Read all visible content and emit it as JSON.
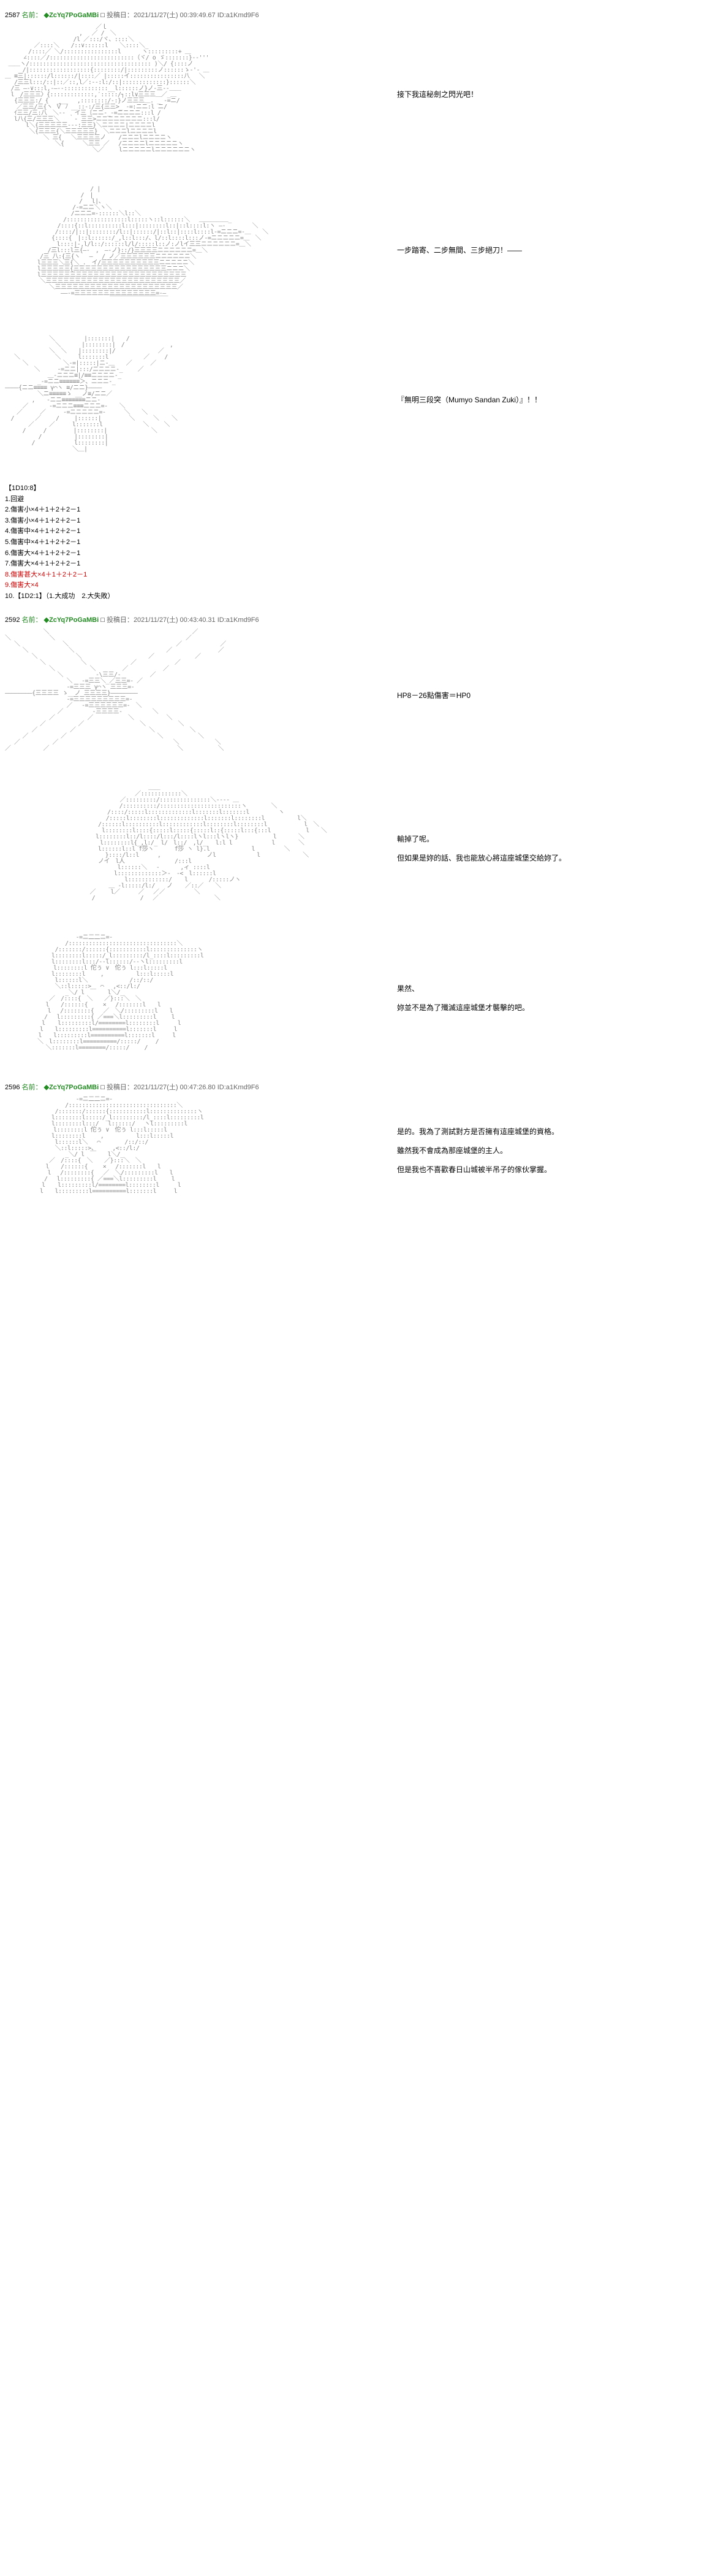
{
  "posts": [
    {
      "number": "2587",
      "name_label": "名前：",
      "trip": "◆ZcYq7PoGaMBi",
      "mark": "□",
      "date_label": "投稿日：",
      "timestamp": "2021/11/27(土) 00:39:49.67",
      "id": "ID:a1Kmd9F6"
    },
    {
      "number": "2592",
      "name_label": "名前：",
      "trip": "◆ZcYq7PoGaMBi",
      "mark": "□",
      "date_label": "投稿日：",
      "timestamp": "2021/11/27(土) 00:43:40.31",
      "id": "ID:a1Kmd9F6"
    },
    {
      "number": "2596",
      "name_label": "名前：",
      "trip": "◆ZcYq7PoGaMBi",
      "mark": "□",
      "date_label": "投稿日：",
      "timestamp": "2021/11/27(土) 00:47:26.80",
      "id": "ID:a1Kmd9F6"
    }
  ],
  "dialogue": {
    "p1": "接下我這秘劍之閃光吧！",
    "p2": "一步踏寄、二步無間、三步絕刀！——",
    "p3": "『無明三段突（Mumyo Sandan Zuki）』！！",
    "p4": "HP8－26點傷害＝HP0",
    "p5a": "輸掉了呢。",
    "p5b": "但如果是妳的話、我也能放心將這座城堡交給妳了。",
    "p6a": "果然、",
    "p6b": "妳並不是為了殲滅這座城堡才襲擊的吧。",
    "p7a": "是的。我為了測試對方是否擁有這座城堡的資格。",
    "p7b": "雖然我不會成為那座城堡的主人。",
    "p7c": "但是我也不喜歡春日山城被半吊子的傢伙掌握。"
  },
  "dice": {
    "header": "【1D10:8】",
    "lines": [
      "1.回避",
      "2.傷害小×4＋1＋2＋2－1",
      "3.傷害小×4＋1＋2＋2－1",
      "4.傷害中×4＋1＋2＋2－1",
      "5.傷害中×4＋1＋2＋2－1",
      "6.傷害大×4＋1＋2＋2－1",
      "7.傷害大×4＋1＋2＋2－1"
    ],
    "line8": "8.傷害甚大×4＋1＋2＋2－1",
    "line9": "9.傷害大×4",
    "line10": "10.【1D2:1】（1.大成功　2.大失敗）"
  },
  "art": {
    "fig1": "　　　　　　　　　　　　　　　 ／ｌ\n　　　　　　　　　 　 　 ,　 ／ /　＼\n　　　　　　　　 　 　 /l ／:::/ヾ、::::＼\n　　　　　／::::＼　　/::∨::::::l　　＼::::＼_\n　　　　/::::／ ＼/::::::::::::::::l　　　 ヽ:::::::::+ ＿\n　 　 ∠::::／/:::::::::::::::::::::::::（ヾ/ o ゞ:::::::}-‐'''\n ＿＿ヽ/:::::::::::::::::::::::::::::::::::: )＼/ {::::ノ\n　　　/|::::::::::::::::::{::::::::/|:::::::::ノ::::::ゝ-'- ＿\n＿ ≡三|::::::/l::::::/|::::／ |:::::イ::::::::::::::::八　 ＼\n　 /三三l:::/::|::／::,l／:-‐:l:/::|:::::::::::::}::::::＼\n　/三 ―-∨:::l,-―--:::::::::::::__l::::::ノ}ノ-三--＿＿\n　l　/三三三〉{:::::::::::::,′:::::/┐::l∨三三三＿／_＿\n　 {三三三:/ {　 ̣̣̣̣̣̣___　 ,::::::::/-:}ノ三三三＿. _ -=ニ/\n　　／三三/三{ヽ Ｖ ﾉ __::-:/三{三三>_ -=:ニニ:l ニ/\n　 ｲ三三/三:八　＼--　 イ三〔ニニ-_-=ニニニニ:::l /\n　 l八{三/三三三＼　 ｀- 三三>ニニニニニニニニ:::l/\n　　　 l＼{三三三三三---:三三}＼ニニニニ|ニニニニl\n　　 　 ＼{三三三{＼三三三三三}　＼ニニニlニニニニl\n　　　　　　 ＼ 三{　 ＼三三三三ノ 　 /ニニニlニニニニヽ\n　　　　　　　　 ＼{　 　 ＼三三 ／ 　/ニニニニlニニニニニヽ\n　　　　　　　　　　　　　　　＼／　　 lニニニニニlニニニニニニヽ",
    "fig2": "　　　 　 　 　 　 　 　 　 / |\n　　　　　　　　　　　　　/　|\n　　　　　　　　 　 　 　/　 l|、\n　　　　　　　　　　　 /-=ニニ＼ヽ＼\n　　　　　　 　 　 　 /ニニニ=-::::::＼l::＼\n　　　　　　　　　　/::::::::::::::::::l:::::ヽ::l::::::＼　 ＿＿＿＿＿_\n　　　　　　　　　/::::{::l::::::::::l:::|::::::::l::|::l::::l:ヽ ―-　　　　 ＼\n　　　　　　　　 /::::/|::|::::::::/l::|::::::/|::l::|::::l::::l-=ニニニ=-＿　　＼\n　　　　　　　　{::::{　|::l::::::/_,l::l:::/、l/::l::::l:::ノ-=ニニニニニ=＿　＼\n　　　 　 　 　 _l::::|-,l/l::/::::::l/l/:::::l::ノ:ノlイ三三ニニニニニニ=＿＼\n　　 　 　 　 /三l:::l三{―-　,　―-ノ}::/}三三三三ニニニニニニ=＿＼\n　　　　　　/三 八:{三{ヽ　 ―　 /_ノ／三三三三三三ニニニニニニ＼\n　　　　　 l三三三＼三{＼_.　イ/三三三三三三三三三三ニニニニニ＼\n　　　　　 l三三三三三{三三三三三三三三三三三三三三三三ニニニ＼\n　　　　　 l三三三三三三三三三三三三三三三三三三三三三三三三三\n　　　　　　＼三三三三三三三三三三三三三三三三三三三三三三三／\n　　　　　　　 ＼三三三三三三三三三三三三三三三三三三三三三／\n　　　　　　　　　 ――-=三三三三三三三三三三三三三三=-―\n　　　　　　　　　　　　　　　　　　￣￣￣￣￣￣￣￣￣￣",
    "fig3": "　　　　　　　 ＼　　　　　|:::::::|　　/\n　　　　　　　　 ＼　　　 |::::::::|　/　　　　 　 　 ,\n　　　　　　　 ＼　＼　　|::::::::|/　　 　 　 　 ／\n　 ＼　　　　　　＼　　　l:::::::l　　　　　　／　　 /\n　　　＼　　　　　　＼-=|:::::|ニ-＿　　／　 　 ／\n　　　　　＼　　　-=ニニ|:::/ニニニニ-_　　 ／\n　　 　 　 　 ＿-ニニニ≡|/≡≡ニニニニ-_\n　　　　　 _-=ニニ≡≡≡≡≡≡＞、ニニニ-_\n――――{ニニ≡≡≡≡ γ⌒ヽ ≡/ニニ}――――\n　　　　　 ＼ニ≡≡≡≡≡ゝ __ノ≡/ニニ／\n　　　　 ,　　-ニニ≡≡≡≡≡≡≡ニニ-\n　　　／　　　 -=ニニニ≡≡≡ニニニ=-　　＼\n　　／　　　／　　　-=ニニニニニ=-　 　 ＼　　＼\n　/　　　 ／　　 /　　 |::::::|　 　 　 ＼　 　 ＼ 　 ＼\n　　　　／　　 ／　　　l:::::::l 　 　 　 　 ＼　　 ＼\n　　　/　　　/　　　　 |::::::::|　　　　　　　 ＼\n　　 　 　 /　　　　　 |::::::::|\n　　　　 /　　　 　 　 l::::::::|\n　　　　　　　　　　　 ＼＿|",
    "fig4": "　　　　　　 ＼　　　　　　　　　　　　　　　　　　　　　　　　 ／\n＼　　　　　　 ＼　　　　　　　　　　　　　　 　 　 　 　 　 ／\n　 ＼　　 　 　 　 ＼　　　　　　　　　　 　 　 　 　 　 ／　　　　　　 ／\n　　　＼ 　 　 　 　 ＼　 　 　 　 　 　 　 　 　 　 ／　 　 　 　 　 ／\n　　　　 ＼　　　　　　 ＼　　　 　 　 　 　 　 ／　　　　　　　／\n　　　　　　＼　　　　　　＼　　　　　　　 ／　　　　　　 ／\n　　　　　　　 ＼　　　　　　＼　　　　 ／　　　　　　／\n　　　　　　　　　＼　　　　　 -\\三三/-　　　　　／\n　　　　　　　　　　 ＼　 -=三三＼_／三三=- ／\n　　　　　　　　　　 -=三三三 γ⌒ヽ 三三三=-\n――――――――{三三三三 ゝ__ノ 三三三三}――――――――\n　　　　　　　　　　 -=三三三三三三三三三=-\n　　　　　　　　　　 ／　 -=三三三三三三=-　＼\n　　　　　　　　　／　　　　　-三三三三-　　　 　 ＼\n　　　　　　　 ／　　　　　 ／　　　　　　＼　　　　　 ＼\n　　　　　　／　　　　　 ／　　　　　　　　　 ＼　　　　　 ＼\n　　　　 ／　　　　　 ／　　　　　　　　　　　　 ＼　　　　　　＼\n　　　／　　　　　 ／　　　　　　　　　　　　　　　 ＼　　　　　　＼\n　 ／　　　　　 ／　　　　　　　　　　　　　　　　 　 　 ＼　　　　 　 ＼\n／　　　　　 ／　　　　　　　　　　　　　　　　　　　　　　＼　　　　　　＼",
    "fig5": "　　　　　　　　　　　　　 　 　 　 　 　 　 　 ＿＿\n　　　　　　　　　　　　　　　　　 　 　 　 ／::::::::::::＼\n　　　　　　　　　　　　　　　　 　 　 ／:::::::::/:::::::::::::::＼---- ＿\n　　　　　　　　 　 　 　 　 　 　 　 /::::::::::/::::::::::::::::::::::::ヽ　　 　 ＼\n　　　　　　　　　　　　　　　　　 /::::/:::::l:::::::::::::l:::::::l:::::::l　　　　　ヽ\n　　　　　　　　　　　 　 　 　 　/:::::l::::::::l:::::::::::::l:::::::l::::::::l　　　　　 l＼\n　　　　　　　　　　　　　　　　/::::::l::::::::::l::::::::::::l::::::::l::::::::l　 　 　 　 l　＼\n　　　　　 　 　 　 　 　 　 　 l::::::::l::::{:::::l:::::{:::::l::{:::::l:::{:::l　　　　　　l　　＼\n　　　　　　　　　　　　　　　 l::::::::l::/l::::/l:::/l::::lヽl:::lヽlヽ}　　　　　　l 　 　 ＼\n　　　　　　　　　　　 　 　 　 l::::::::l{_,l:/_ l/　l::/　,l/_ 　l:l l　　　 　 　 l　　　　＼\n　　　　　　　　　　　　　　　　l::::::l::l f莎ヽ　　　 f莎 ヽ l}.l　　　　　 　 l　　　　　＼\n　　　　 　 　 　 　 　 　 　 　 }::::/l::l　 　 ,　 　 　 　 　 ノl　　　　　　　l　　 　 　 　 ＼\n　　　　　　　　　　　　　　　　ノイ　l人　　　　　　　　 /:::l\n　　　　　　　　　　　　　　 　 　 　 l::::::＼　 -　　　 ,ィ ::::l\n　　　　　　　　　　　　　　　 　 　 l:::::::::::::＞-　-<　l::::::l\n　 　 　 　 　 　 　 　 　 　 　 　 　 l::::::::::::/ 　 l　　　 /:::::ノヽ\n　　　 　 　 　 　 　 　 　 　 　 ＿ -l:::::/l:/　　ノ 　 ／::／　　＼\n　　　　　　　　　　　　　　 ／　　 l／　 　 ／　 ／／　　　　　＼\n　　　　　　　 　 　 　 　 　/　　　　 　 　 /　 ／　　　　　　　　　 ＼",
    "fig6": "　　　　　　　　　　 　 -=ニ二二ニ=-\n　　　　　 　 　 　 /::::::::::::::::::::::::::::::::＼\n　　　　　　　　 /:::::::/::::::{:::::::::::l::::::::::::::ヽ\n　　　　　　　　l::::::::l:::::/_l:::::::::/l_::::l:::::::::l\n　　　　　　　　l::::::::l:::/-‐l::::::/‐-ヽl:::::::::l\n　　　 　 　 　 l::::::::l 佗ぅ ∨　佗ぅ l:::l:::::l\n　　　　　　　　l::::::::l　　 ,　　　　　 l:::l:::::l\n　　　　　　　　 l::::::l＼　　　　　 　 /::/::/\n　　　　　　　　 ＼::l:::::>　 ⌒　 ,<::/l:/\n　　　　　 　 　 　 _＼/ l　￣　　l＼/_\n　　　　　　　 ／　/::::{　＼　　／}:::＼　＼\n　　　　　　　l　　/::::::{　　 ×　 /:::::::l　　l\n　　 　 　 　 l　 /::::::::{　 ／　＼/:::::::::l　　l\n　　　 　 　 /　 l:::::::::{ ／===＼l:::::::::l　　 l\n　 　 　 　 l 　 l:::::::::l/========l::::::::l　 　 l\n　　　　　　l　　l:::::::::l==========l:::::::l　　　l\n　　 　 　 l　　l:::::::::l==========l:::::::l　　　l\n　　　　　 ＼　l::::::::l==========/:::::/　　 /\n　　　　　　　＼:::::::l========/:::::/　　 /",
    "fig7": "　　　　　　　　　　 　 -=ニ二二ニ=-\n　　　　　 　 　 　 /::::::::::::::::::::::::::::::::＼\n　　　　　　　　 /:::::::/::::::{:::::::::::l::::::::::::::ヽ\n　　　　　　　　l::::::::l:::::/_l:::::::::/l_::::l:::::::::l\n　　　　　　　　l::::::::l:::/　 l::::::/　 ヽl:::::::::l\n　　　 　 　 　 l::::::::l 佗ぅ ∨　佗ぅ l:::l:::::l\n　　　　　　　　l::::::::l　　 ,　　　　　 l:::l:::::l\n　　　　　　　　 l::::::l＼　 ⌒　 　 　/::/::/\n　　　　　　　　 ＼::l:::::>、　 　 ,<::/l:/\n　　　　　 　 　 　 _＼/ l　￣　　l＼/_\n　　　　　　　 ／　/::::{　＼　　／}:::＼　＼\n　　　　　　　l　　/::::::{　　 ×　 /:::::::l　　l\n　　 　 　 　 l　 /::::::::{　 ／　＼/:::::::::l　　l\n　　　 　 　 /　 l:::::::::{ ／===＼l:::::::::l　　 l\n　 　 　 　 l 　 l:::::::::l/========l::::::::l　 　 l\n　　　　　　l　　l:::::::::l==========l:::::::l　　　l"
  }
}
